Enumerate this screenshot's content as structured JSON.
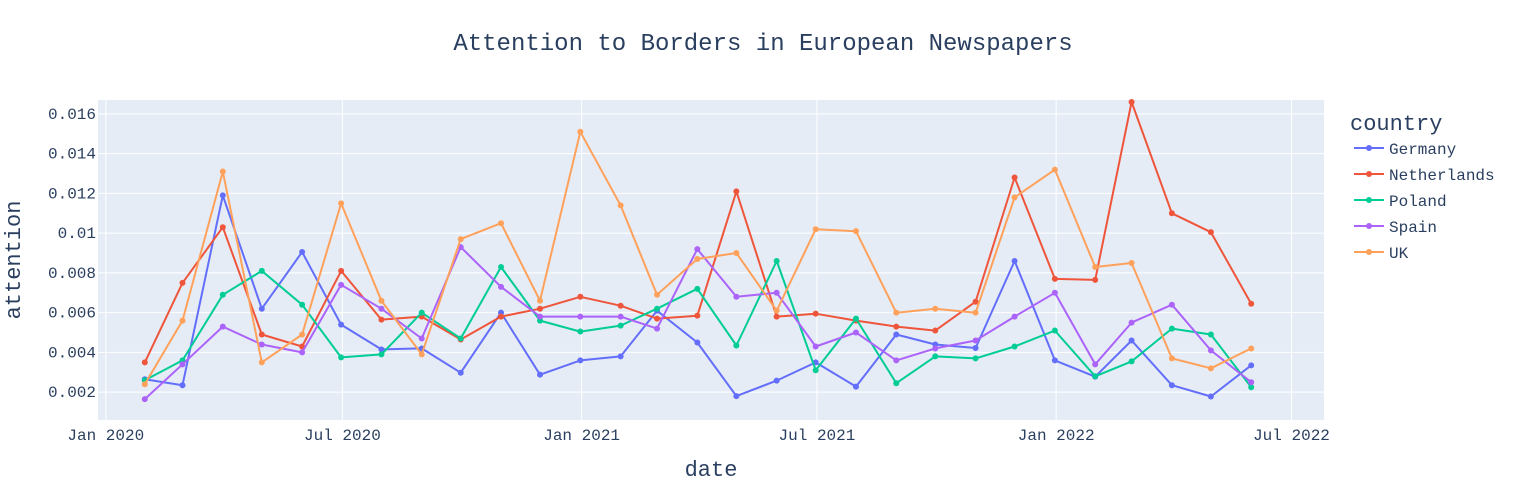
{
  "chart_data": {
    "type": "line",
    "title": "Attention to Borders in European Newspapers",
    "xlabel": "date",
    "ylabel": "attention",
    "legend_title": "country",
    "legend_position": "right",
    "grid": true,
    "xlim": [
      "2019-12-26",
      "2022-07-26"
    ],
    "ylim": [
      0.0006,
      0.0167
    ],
    "x_ticks": [
      {
        "value": "2020-01-01",
        "label": "Jan 2020"
      },
      {
        "value": "2020-07-01",
        "label": "Jul 2020"
      },
      {
        "value": "2021-01-01",
        "label": "Jan 2021"
      },
      {
        "value": "2021-07-01",
        "label": "Jul 2021"
      },
      {
        "value": "2022-01-01",
        "label": "Jan 2022"
      },
      {
        "value": "2022-07-01",
        "label": "Jul 2022"
      }
    ],
    "y_ticks": [
      {
        "value": 0.002,
        "label": "0.002"
      },
      {
        "value": 0.004,
        "label": "0.004"
      },
      {
        "value": 0.006,
        "label": "0.006"
      },
      {
        "value": 0.008,
        "label": "0.008"
      },
      {
        "value": 0.01,
        "label": "0.01"
      },
      {
        "value": 0.012,
        "label": "0.012"
      },
      {
        "value": 0.014,
        "label": "0.014"
      },
      {
        "value": 0.016,
        "label": "0.016"
      }
    ],
    "x": [
      "2020-01-31",
      "2020-02-29",
      "2020-03-31",
      "2020-04-30",
      "2020-05-31",
      "2020-06-30",
      "2020-07-31",
      "2020-08-31",
      "2020-09-30",
      "2020-10-31",
      "2020-11-30",
      "2020-12-31",
      "2021-01-31",
      "2021-02-28",
      "2021-03-31",
      "2021-04-30",
      "2021-05-31",
      "2021-06-30",
      "2021-07-31",
      "2021-08-31",
      "2021-09-30",
      "2021-10-31",
      "2021-11-30",
      "2021-12-31",
      "2022-01-31",
      "2022-02-28",
      "2022-03-31",
      "2022-04-30",
      "2022-05-31"
    ],
    "series": [
      {
        "name": "Germany",
        "color": "#636efa",
        "values": [
          0.00265,
          0.00235,
          0.0119,
          0.0062,
          0.00905,
          0.0054,
          0.00415,
          0.0042,
          0.00298,
          0.006,
          0.00288,
          0.0036,
          0.0038,
          0.0061,
          0.0045,
          0.0018,
          0.00258,
          0.0035,
          0.00228,
          0.0049,
          0.0044,
          0.00422,
          0.0086,
          0.0036,
          0.00278,
          0.0046,
          0.00235,
          0.00178,
          0.00335
        ]
      },
      {
        "name": "Netherlands",
        "color": "#ef553b",
        "values": [
          0.0035,
          0.0075,
          0.0103,
          0.0049,
          0.0043,
          0.0081,
          0.00565,
          0.0058,
          0.00465,
          0.0058,
          0.0062,
          0.0068,
          0.00635,
          0.0057,
          0.00585,
          0.0121,
          0.0058,
          0.00595,
          0.0056,
          0.0053,
          0.0051,
          0.00655,
          0.0128,
          0.0077,
          0.00765,
          0.0166,
          0.011,
          0.01005,
          0.00645
        ]
      },
      {
        "name": "Poland",
        "color": "#00cc96",
        "values": [
          0.0026,
          0.0036,
          0.0069,
          0.0081,
          0.0064,
          0.00375,
          0.0039,
          0.006,
          0.0047,
          0.0083,
          0.0056,
          0.00505,
          0.00535,
          0.0062,
          0.0072,
          0.00435,
          0.0086,
          0.0031,
          0.0057,
          0.00245,
          0.0038,
          0.0037,
          0.0043,
          0.0051,
          0.0028,
          0.00355,
          0.0052,
          0.0049,
          0.00225
        ]
      },
      {
        "name": "Spain",
        "color": "#ab63fa",
        "values": [
          0.00165,
          0.0034,
          0.0053,
          0.0044,
          0.004,
          0.0074,
          0.0062,
          0.0047,
          0.0093,
          0.0073,
          0.0058,
          0.0058,
          0.0058,
          0.0052,
          0.0092,
          0.0068,
          0.007,
          0.0043,
          0.005,
          0.0036,
          0.0042,
          0.0046,
          0.0058,
          0.007,
          0.0034,
          0.0055,
          0.0064,
          0.0041,
          0.0025
        ]
      },
      {
        "name": "UK",
        "color": "#ffa15a",
        "values": [
          0.0024,
          0.0056,
          0.0131,
          0.0035,
          0.0049,
          0.0115,
          0.0066,
          0.0039,
          0.0097,
          0.0105,
          0.0066,
          0.0151,
          0.0114,
          0.0069,
          0.0087,
          0.009,
          0.0061,
          0.0102,
          0.0101,
          0.006,
          0.0062,
          0.006,
          0.0118,
          0.0132,
          0.0083,
          0.0085,
          0.0037,
          0.0032,
          0.0042
        ]
      }
    ]
  }
}
